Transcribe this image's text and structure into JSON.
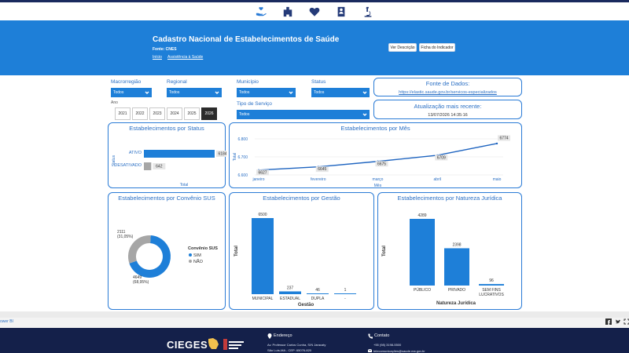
{
  "nav": {
    "icons": [
      "hand-holding-heart-icon",
      "building-icon",
      "heart-icon",
      "id-card-icon",
      "microscope-icon"
    ]
  },
  "header": {
    "title": "Cadastro Nacional de Estabelecimentos de Saúde",
    "source": "Fonte: CNES",
    "breadcrumbs": [
      "Início",
      "Assistência à Saúde"
    ],
    "buttons": {
      "description": "Ver Descrição",
      "indicator": "Ficha do Indicador"
    }
  },
  "filters": {
    "macroregiao": {
      "label": "Macrorregião",
      "value": "Todos"
    },
    "regional": {
      "label": "Regional",
      "value": "Todos"
    },
    "municipio": {
      "label": "Município",
      "value": "Todos"
    },
    "status": {
      "label": "Status",
      "value": "Todos"
    },
    "tipo_servico": {
      "label": "Tipo de Serviço",
      "value": "Todos"
    },
    "ano": {
      "label": "Ano",
      "years": [
        "2021",
        "2022",
        "2023",
        "2024",
        "2025",
        "2026"
      ],
      "selected": "2026"
    }
  },
  "info": {
    "fonte": {
      "title": "Fonte de Dados:",
      "value": "https://elastic.saude.gov.br/servicos-especializados"
    },
    "atualizacao": {
      "title": "Atualização mais recente:",
      "value": "13/07/2026 14:35:16"
    }
  },
  "chart_data": [
    {
      "type": "bar",
      "title": "Estabelecimentos por Status",
      "orientation": "horizontal",
      "categories": [
        "ATIVO",
        "DESATIVADO"
      ],
      "values": [
        6184,
        642
      ],
      "xlabel": "Total",
      "ylabel": "Status",
      "color": "#1e7fd8",
      "colors": [
        "#1e7fd8",
        "#a6a6a6"
      ]
    },
    {
      "type": "line",
      "title": "Estabelecimentos por Mês",
      "x": [
        "janeiro",
        "fevereiro",
        "março",
        "abril",
        "maio"
      ],
      "values": [
        6627,
        6645,
        6675,
        6709,
        6774
      ],
      "xlabel": "Mês",
      "ylabel": "Total",
      "ylim": [
        6600,
        6800
      ],
      "yticks": [
        "6.600",
        "6.700",
        "6.800"
      ],
      "grid": true,
      "color": "#1e64c0"
    },
    {
      "type": "pie",
      "title": "Estabelecimentos por Convênio SUS",
      "legend_title": "Convênio SUS",
      "labels": [
        "SIM",
        "NÃO"
      ],
      "values": [
        4649,
        2111
      ],
      "slice_labels": [
        "4649\n(68,95%)",
        "2111\n(31,05%)"
      ],
      "colors": [
        "#1e7fd8",
        "#a6a6a6"
      ],
      "legend_position": "right"
    },
    {
      "type": "bar",
      "title": "Estabelecimentos por Gestão",
      "categories": [
        "MUNICIPAL",
        "ESTADUAL",
        "DUPLA",
        "-"
      ],
      "values": [
        6500,
        237,
        46,
        1
      ],
      "xlabel": "Gestão",
      "ylabel": "Total",
      "color": "#1e7fd8"
    },
    {
      "type": "bar",
      "title": "Estabelecimentos por Natureza Jurídica",
      "categories": [
        "PÚBLICO",
        "PRIVADO",
        "SEM FINS\nLUCRATIVOS"
      ],
      "values": [
        4289,
        2398,
        96
      ],
      "xlabel": "Natureza Jurídica",
      "ylabel": "Total",
      "color": "#1e7fd8"
    }
  ],
  "statusbar": {
    "link": "ower BI"
  },
  "footer": {
    "logo": "CIEGES",
    "endereco": {
      "title": "Endereço",
      "line1": "Av. Professor Carlos Cunha, S/N Jaracaty",
      "line2": "São Luís-MA - CEP: 65076-820"
    },
    "contato": {
      "title": "Contato",
      "phone": "+55 (98) 3198-5500",
      "email": "telecomunicações@saude.ma.gov.br"
    }
  }
}
